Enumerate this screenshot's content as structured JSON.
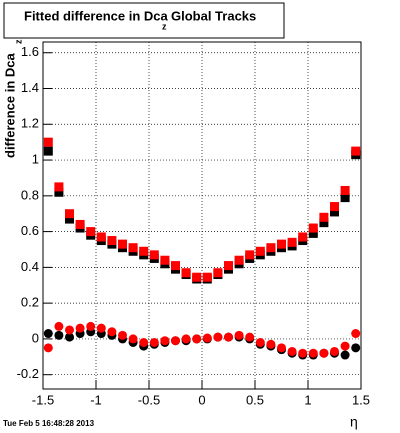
{
  "chart_data": {
    "type": "scatter",
    "title": "Fitted difference in Dca",
    "title_subscript": "z",
    "title_suffix": "Global Tracks",
    "y_label": "difference in Dca",
    "y_label_subscript": "z",
    "x_label": "η",
    "timestamp": "Tue Feb  5 16:48:28 2013",
    "x": [
      -1.45,
      -1.35,
      -1.25,
      -1.15,
      -1.05,
      -0.95,
      -0.85,
      -0.75,
      -0.65,
      -0.55,
      -0.45,
      -0.35,
      -0.25,
      -0.15,
      -0.05,
      0.05,
      0.15,
      0.25,
      0.35,
      0.45,
      0.55,
      0.65,
      0.75,
      0.85,
      0.95,
      1.05,
      1.15,
      1.25,
      1.35,
      1.45
    ],
    "series": [
      {
        "color": "#000000",
        "marker": "square",
        "values": [
          1.05,
          0.82,
          0.67,
          0.62,
          0.58,
          0.55,
          0.53,
          0.51,
          0.49,
          0.47,
          0.45,
          0.42,
          0.39,
          0.36,
          0.335,
          0.335,
          0.36,
          0.39,
          0.42,
          0.45,
          0.47,
          0.49,
          0.51,
          0.52,
          0.55,
          0.59,
          0.65,
          0.71,
          0.79,
          1.03
        ]
      },
      {
        "color": "#ff0000",
        "marker": "square",
        "values": [
          1.1,
          0.85,
          0.7,
          0.64,
          0.6,
          0.57,
          0.55,
          0.53,
          0.51,
          0.49,
          0.47,
          0.44,
          0.41,
          0.37,
          0.345,
          0.345,
          0.37,
          0.41,
          0.44,
          0.47,
          0.49,
          0.51,
          0.53,
          0.54,
          0.57,
          0.62,
          0.68,
          0.74,
          0.83,
          1.05
        ]
      },
      {
        "color": "#000000",
        "marker": "circle",
        "values": [
          0.03,
          0.02,
          0.01,
          0.03,
          0.04,
          0.03,
          0.02,
          0.0,
          -0.02,
          -0.04,
          -0.03,
          -0.02,
          -0.01,
          -0.01,
          0.0,
          0.0,
          0.01,
          0.01,
          0.01,
          0.0,
          -0.03,
          -0.04,
          -0.06,
          -0.08,
          -0.09,
          -0.09,
          -0.08,
          -0.08,
          -0.09,
          -0.05
        ]
      },
      {
        "color": "#ff0000",
        "marker": "circle",
        "values": [
          -0.05,
          0.07,
          0.05,
          0.06,
          0.07,
          0.06,
          0.04,
          0.02,
          0.0,
          -0.02,
          -0.02,
          -0.01,
          -0.01,
          0.0,
          0.0,
          0.005,
          0.01,
          0.01,
          0.02,
          0.01,
          -0.02,
          -0.03,
          -0.05,
          -0.07,
          -0.08,
          -0.08,
          -0.08,
          -0.07,
          -0.04,
          0.03
        ]
      }
    ],
    "xlim": [
      -1.5,
      1.5
    ],
    "xticks": [
      -1.5,
      -1,
      -0.5,
      0,
      0.5,
      1,
      1.5
    ],
    "ylim": [
      -0.28,
      1.66
    ],
    "yticks": [
      -0.2,
      0,
      0.2,
      0.4,
      0.6,
      0.8,
      1,
      1.2,
      1.4,
      1.6
    ],
    "grid": true
  }
}
